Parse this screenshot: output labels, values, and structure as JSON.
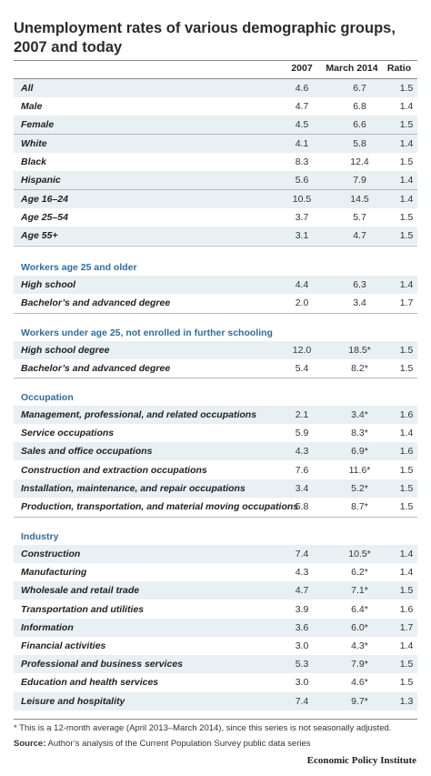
{
  "title": "Unemployment rates of various demographic groups, 2007 and today",
  "columns": [
    "2007",
    "March 2014",
    "Ratio"
  ],
  "groups": [
    {
      "heading": "",
      "rows": [
        {
          "label": "All",
          "y2007": "4.6",
          "y2014": "6.7",
          "ratio": "1.5"
        },
        {
          "label": "Male",
          "y2007": "4.7",
          "y2014": "6.8",
          "ratio": "1.4"
        },
        {
          "label": "Female",
          "y2007": "4.5",
          "y2014": "6.6",
          "ratio": "1.5"
        }
      ]
    },
    {
      "heading": "",
      "rows": [
        {
          "label": "White",
          "y2007": "4.1",
          "y2014": "5.8",
          "ratio": "1.4"
        },
        {
          "label": "Black",
          "y2007": "8.3",
          "y2014": "12.4",
          "ratio": "1.5"
        },
        {
          "label": "Hispanic",
          "y2007": "5.6",
          "y2014": "7.9",
          "ratio": "1.4"
        }
      ]
    },
    {
      "heading": "",
      "rows": [
        {
          "label": "Age 16–24",
          "y2007": "10.5",
          "y2014": "14.5",
          "ratio": "1.4"
        },
        {
          "label": "Age 25–54",
          "y2007": "3.7",
          "y2014": "5.7",
          "ratio": "1.5"
        },
        {
          "label": "Age 55+",
          "y2007": "3.1",
          "y2014": "4.7",
          "ratio": "1.5"
        }
      ]
    },
    {
      "heading": "Workers age 25 and older",
      "rows": [
        {
          "label": "High school",
          "y2007": "4.4",
          "y2014": "6.3",
          "ratio": "1.4"
        },
        {
          "label": "Bachelor’s and advanced degree",
          "y2007": "2.0",
          "y2014": "3.4",
          "ratio": "1.7"
        }
      ]
    },
    {
      "heading": "Workers under age 25, not enrolled in further schooling",
      "rows": [
        {
          "label": "High school degree",
          "y2007": "12.0",
          "y2014": "18.5*",
          "ratio": "1.5"
        },
        {
          "label": "Bachelor’s and advanced degree",
          "y2007": "5.4",
          "y2014": "8.2*",
          "ratio": "1.5"
        }
      ]
    },
    {
      "heading": "Occupation",
      "rows": [
        {
          "label": "Management, professional, and related occupations",
          "y2007": "2.1",
          "y2014": "3.4*",
          "ratio": "1.6"
        },
        {
          "label": "Service occupations",
          "y2007": "5.9",
          "y2014": "8.3*",
          "ratio": "1.4"
        },
        {
          "label": "Sales and office occupations",
          "y2007": "4.3",
          "y2014": "6.9*",
          "ratio": "1.6"
        },
        {
          "label": "Construction and extraction occupations",
          "y2007": "7.6",
          "y2014": "11.6*",
          "ratio": "1.5"
        },
        {
          "label": "Installation, maintenance, and repair occupations",
          "y2007": "3.4",
          "y2014": "5.2*",
          "ratio": "1.5"
        },
        {
          "label": "Production, transportation, and material moving occupations",
          "y2007": "5.8",
          "y2014": "8.7*",
          "ratio": "1.5"
        }
      ]
    },
    {
      "heading": "Industry",
      "rows": [
        {
          "label": "Construction",
          "y2007": "7.4",
          "y2014": "10.5*",
          "ratio": "1.4"
        },
        {
          "label": "Manufacturing",
          "y2007": "4.3",
          "y2014": "6.2*",
          "ratio": "1.4"
        },
        {
          "label": "Wholesale and retail trade",
          "y2007": "4.7",
          "y2014": "7.1*",
          "ratio": "1.5"
        },
        {
          "label": "Transportation and utilities",
          "y2007": "3.9",
          "y2014": "6.4*",
          "ratio": "1.6"
        },
        {
          "label": "Information",
          "y2007": "3.6",
          "y2014": "6.0*",
          "ratio": "1.7"
        },
        {
          "label": "Financial activities",
          "y2007": "3.0",
          "y2014": "4.3*",
          "ratio": "1.4"
        },
        {
          "label": "Professional and business services",
          "y2007": "5.3",
          "y2014": "7.9*",
          "ratio": "1.5"
        },
        {
          "label": "Education and health services",
          "y2007": "3.0",
          "y2014": "4.6*",
          "ratio": "1.5"
        },
        {
          "label": "Leisure and hospitality",
          "y2007": "7.4",
          "y2014": "9.7*",
          "ratio": "1.3"
        }
      ]
    }
  ],
  "footnote": "* This is a 12-month average (April 2013–March 2014), since this series is not seasonally adjusted.",
  "source_label": "Source:",
  "source_text": " Author’s analysis of the Current Population Survey public data series",
  "brand": "Economic Policy Institute",
  "colors": {
    "header_blue": "#2f6d9e",
    "row_shade": "#e8f0f3"
  }
}
